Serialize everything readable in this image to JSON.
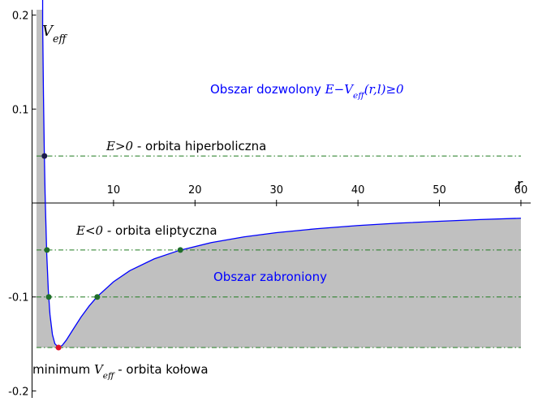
{
  "chart_data": {
    "type": "line",
    "x": [
      1.3,
      1.4,
      1.5,
      1.6,
      1.8,
      2,
      2.2,
      2.5,
      2.8,
      3.25,
      3.7,
      4.2,
      5,
      6,
      7,
      8,
      10,
      12,
      15,
      18,
      22,
      26,
      30,
      35,
      40,
      45,
      50,
      55,
      60
    ],
    "series": [
      {
        "name": "V_eff",
        "color": "#0000ff",
        "values": [
          0.1923,
          0.1148,
          0.0556,
          0.0098,
          -0.0541,
          -0.0938,
          -0.1188,
          -0.14,
          -0.1498,
          -0.1538,
          -0.1516,
          -0.146,
          -0.135,
          -0.1215,
          -0.1097,
          -0.0996,
          -0.0838,
          -0.072,
          -0.0594,
          -0.0506,
          -0.0421,
          -0.0361,
          -0.0315,
          -0.0273,
          -0.024,
          -0.0214,
          -0.0194,
          -0.0176,
          -0.0162
        ]
      }
    ],
    "energy_levels": {
      "color": "#1f7a1f",
      "values": [
        0.05,
        -0.05,
        -0.1,
        -0.1538
      ]
    },
    "points": {
      "x": [
        1.52,
        1.83,
        18.2,
        2.05,
        8.0,
        3.25
      ],
      "y": [
        0.05,
        -0.05,
        -0.05,
        -0.1,
        -0.1,
        -0.1538
      ],
      "colors": [
        "#1a1a4a",
        "#1f6e2a",
        "#1f6e2a",
        "#1f6e2a",
        "#1f6e2a",
        "#e0102a"
      ]
    },
    "fill_color": "#c0c0c0",
    "xlabel": "r",
    "ylabel": [
      "V",
      "eff"
    ],
    "annotations": [
      [
        "Obszar dozwolony ",
        "E−V",
        "eff",
        "(r,l)≥0"
      ],
      [
        "E>0",
        " - orbita hiperboliczna"
      ],
      [
        "E<0",
        " - orbita eliptyczna"
      ],
      [
        "Obszar zabroniony"
      ],
      [
        "minimum ",
        "V",
        "eff",
        " - orbita kołowa"
      ]
    ],
    "xlim": [
      0,
      61.2
    ],
    "ylim": [
      -0.2074,
      0.2057
    ],
    "xticks": [
      10,
      20,
      30,
      40,
      50,
      60
    ],
    "yticks": [
      0.2,
      0.1,
      -0.1,
      -0.2
    ]
  }
}
